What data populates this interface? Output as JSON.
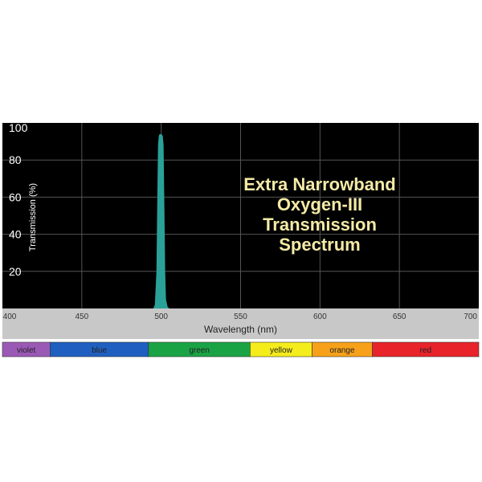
{
  "chart_data": {
    "type": "area",
    "title_lines": [
      "Extra Narrowband",
      "Oxygen-III",
      "Transmission",
      "Spectrum"
    ],
    "xlabel": "Wavelength (nm)",
    "ylabel": "Transmission (%)",
    "xlim": [
      400,
      700
    ],
    "ylim": [
      0,
      100
    ],
    "x_ticks": [
      "400",
      "450",
      "500",
      "550",
      "600",
      "650",
      "700"
    ],
    "y_ticks": [
      "20",
      "40",
      "60",
      "80",
      "100"
    ],
    "grid": true,
    "colors": {
      "plot_bg": "#000000",
      "grid": "#555555",
      "curve": "#2aa198",
      "xaxis_bg": "#c8c8c8",
      "title": "#f4eaa6"
    },
    "series": [
      {
        "x": [
          495.0,
          496.0,
          497.0,
          497.5,
          498.0,
          498.5,
          499.0,
          500.0,
          501.0,
          501.5,
          502.0,
          502.5,
          503.0,
          504.0,
          505.0
        ],
        "y": [
          0,
          2,
          20,
          55,
          88,
          93,
          94,
          94,
          93,
          88,
          55,
          20,
          5,
          1,
          0
        ]
      }
    ],
    "color_bands": [
      {
        "label": "violet",
        "start": 400,
        "end": 430,
        "color": "#9b59b6"
      },
      {
        "label": "blue",
        "start": 430,
        "end": 492,
        "color": "#1f5fbf"
      },
      {
        "label": "green",
        "start": 492,
        "end": 556,
        "color": "#1aa345"
      },
      {
        "label": "yellow",
        "start": 556,
        "end": 595,
        "color": "#f5ec1b"
      },
      {
        "label": "orange",
        "start": 595,
        "end": 633,
        "color": "#f7a11a"
      },
      {
        "label": "red",
        "start": 633,
        "end": 700,
        "color": "#e8232a"
      }
    ]
  }
}
